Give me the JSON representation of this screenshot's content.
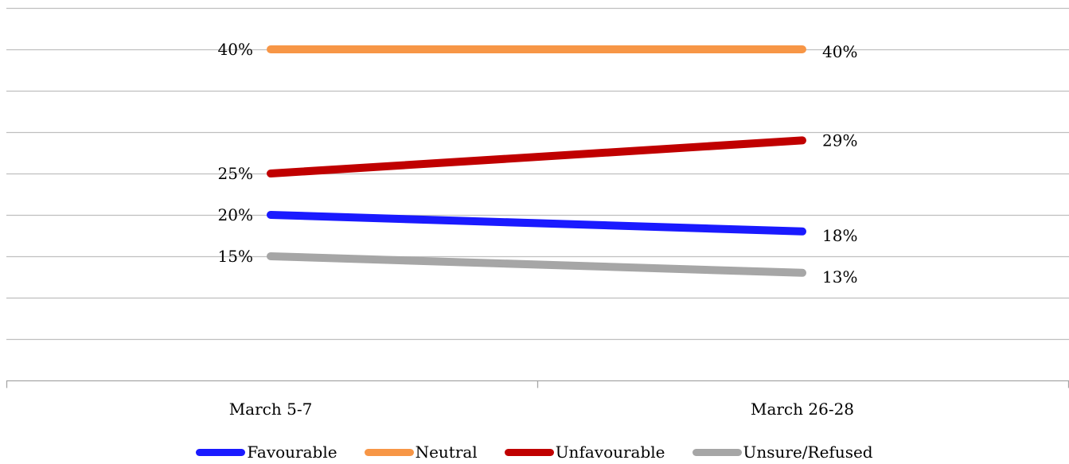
{
  "chart_data": {
    "type": "line",
    "categories": [
      "March 5-7",
      "March 26-28"
    ],
    "series": [
      {
        "name": "Favourable",
        "values": [
          20,
          18
        ],
        "labels": [
          "20%",
          "18%"
        ],
        "color": "#1a1aff"
      },
      {
        "name": "Neutral",
        "values": [
          40,
          40
        ],
        "labels": [
          "40%",
          "40%"
        ],
        "color": "#f79646"
      },
      {
        "name": "Unfavourable",
        "values": [
          25,
          29
        ],
        "labels": [
          "25%",
          "29%"
        ],
        "color": "#c00000"
      },
      {
        "name": "Unsure/Refused",
        "values": [
          15,
          13
        ],
        "labels": [
          "15%",
          "13%"
        ],
        "color": "#a6a6a6"
      }
    ],
    "ylim": [
      0,
      45
    ],
    "grid": true,
    "y_tick_labels_shown": false,
    "legend_position": "bottom",
    "gridline_color": "#bfbfbf"
  }
}
